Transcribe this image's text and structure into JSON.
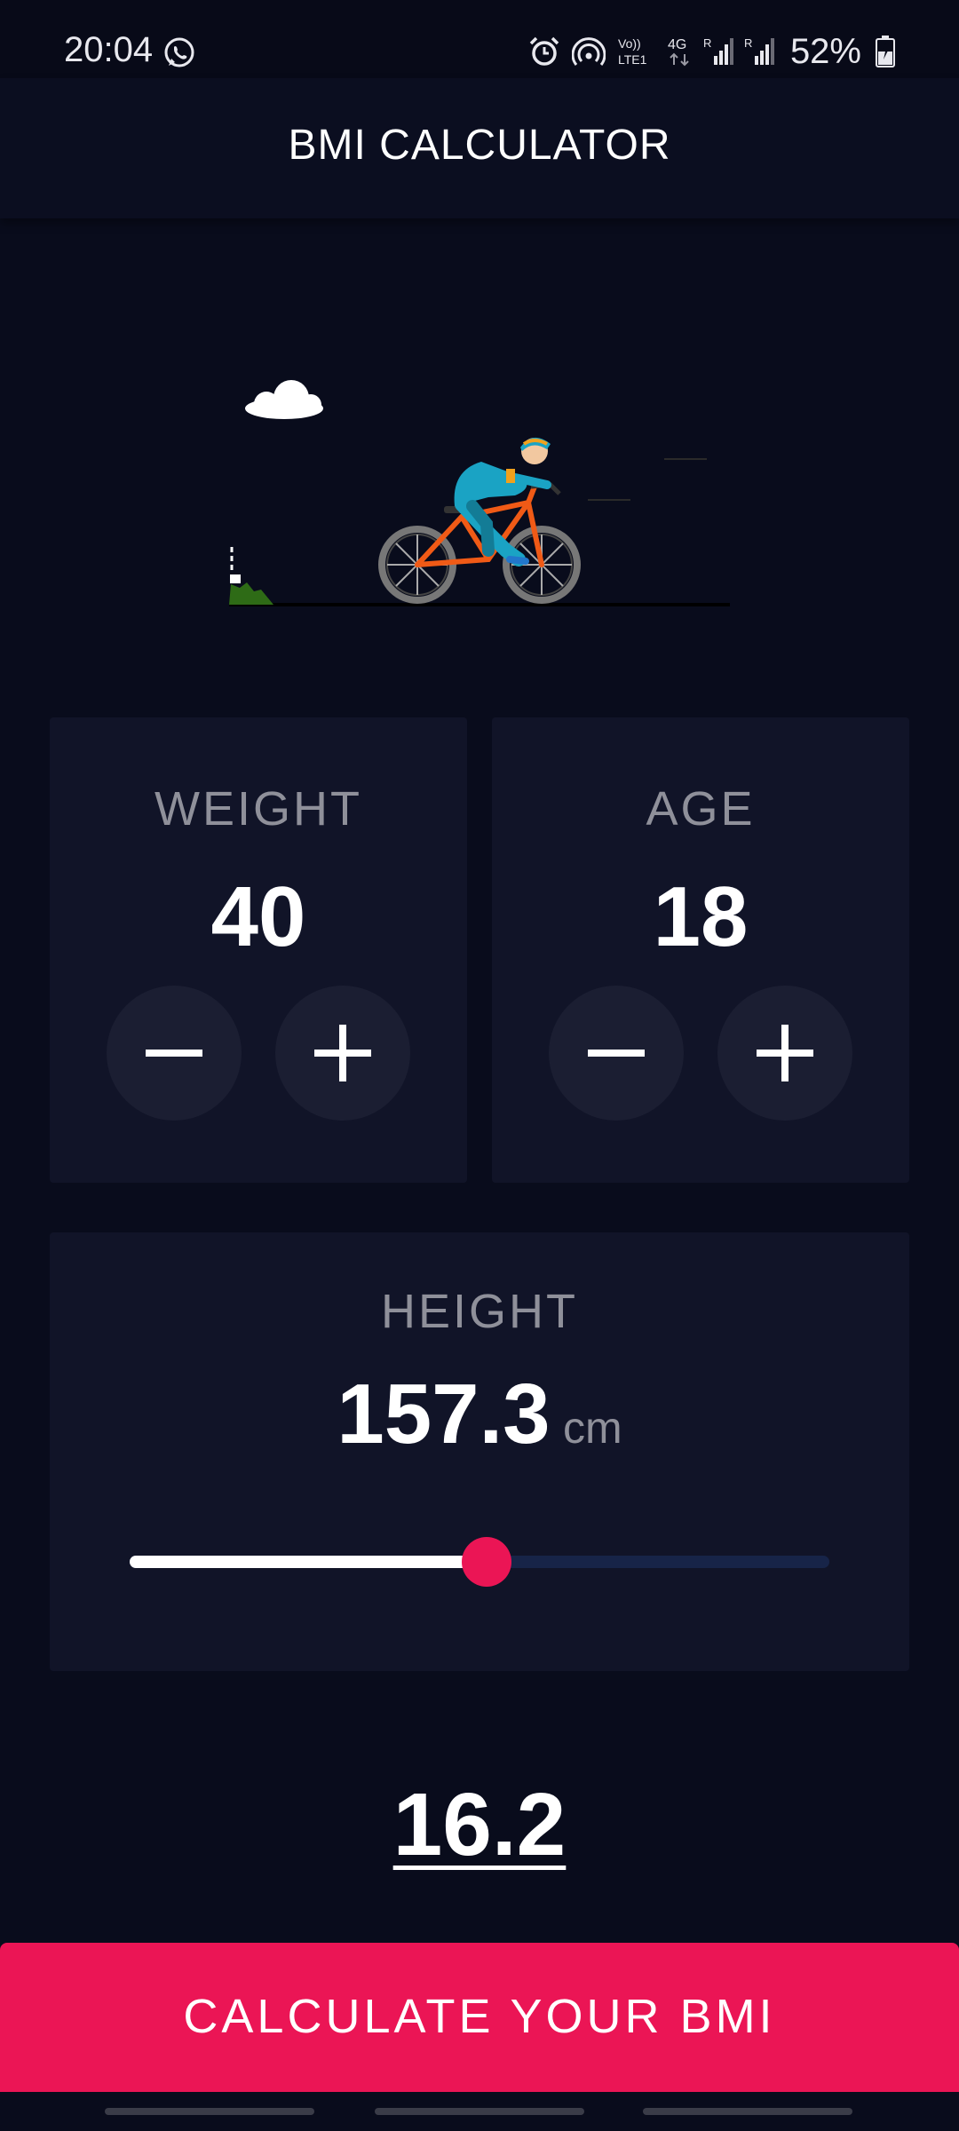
{
  "status_bar": {
    "time": "20:04",
    "battery": "52%",
    "icons": [
      "whatsapp-icon",
      "alarm-icon",
      "hotspot-icon",
      "volte-icon",
      "4g-icon",
      "signal-icon",
      "signal-icon",
      "battery-charging-icon"
    ]
  },
  "app_bar": {
    "title": "BMI CALCULATOR"
  },
  "illustration": {
    "name": "cyclist-animation"
  },
  "weight": {
    "label": "WEIGHT",
    "value": "40"
  },
  "age": {
    "label": "AGE",
    "value": "18"
  },
  "height": {
    "label": "HEIGHT",
    "value": "157.3",
    "unit": "cm",
    "slider_fraction": 0.51
  },
  "result": {
    "bmi": "16.2"
  },
  "calculate_button": {
    "label": "CALCULATE YOUR BMI"
  },
  "colors": {
    "background": "#090c1c",
    "card": "#111428",
    "accent": "#eb1555",
    "button_circle": "#1b1e32",
    "label_gray": "#8f909a"
  }
}
